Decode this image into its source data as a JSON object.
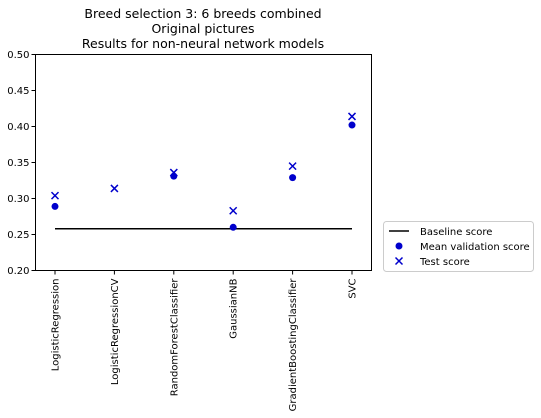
{
  "chart_data": {
    "type": "scatter",
    "title_lines": [
      "Breed selection 3: 6 breeds combined",
      "Original pictures",
      "Results for non-neural network models"
    ],
    "xlabel": "",
    "ylabel": "",
    "categories": [
      "LogisticRegression",
      "LogisticRegressionCV",
      "RandomForestClassifier",
      "GaussianNB",
      "GradientBoostingClassifier",
      "SVC"
    ],
    "ylim": [
      0.2,
      0.5
    ],
    "yticks": [
      "0.20",
      "0.25",
      "0.30",
      "0.35",
      "0.40",
      "0.45",
      "0.50"
    ],
    "grid": false,
    "legend_position": "outside-right-bottom",
    "baseline": {
      "name": "Baseline score",
      "value": 0.258,
      "color": "#000000"
    },
    "series": [
      {
        "name": "Mean validation score",
        "marker": "circle",
        "color": "#0000cc",
        "values": [
          0.289,
          null,
          0.331,
          0.26,
          0.329,
          0.402
        ]
      },
      {
        "name": "Test score",
        "marker": "x",
        "color": "#0000cc",
        "values": [
          0.304,
          0.314,
          0.336,
          0.283,
          0.345,
          0.414
        ]
      }
    ]
  }
}
